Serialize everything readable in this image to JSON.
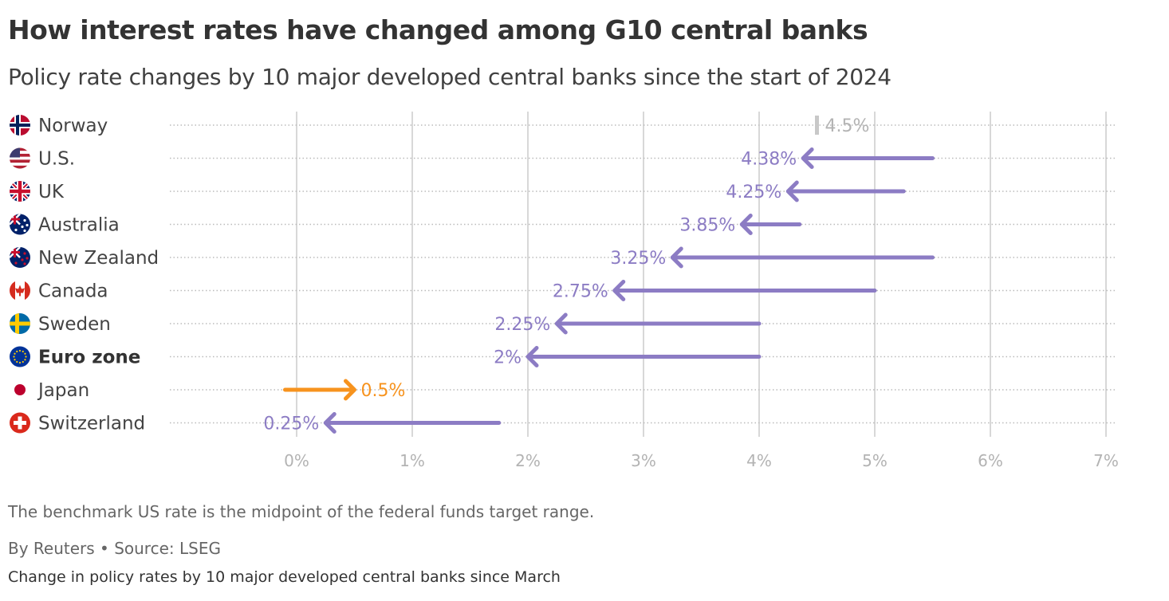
{
  "title": "How interest rates have changed among G10 central banks",
  "subtitle": "Policy rate changes by 10 major developed central banks since the start of 2024",
  "footnote": "The benchmark US rate is the midpoint of the federal funds target range.",
  "source": "By Reuters • Source: LSEG",
  "caption": "Change in policy rates by 10 major developed central banks since March",
  "colors": {
    "cut": "#8c7cc4",
    "hike": "#f7931e",
    "unchanged": "#c8c8c8",
    "grid": "#cccccc",
    "dotted": "#bbbbbb",
    "axis_text": "#b3b3b3"
  },
  "chart_data": {
    "type": "arrow",
    "title": "How interest rates have changed among G10 central banks",
    "xlabel": "",
    "ylabel": "",
    "xlim": [
      0,
      7
    ],
    "x_ticks": [
      0,
      1,
      2,
      3,
      4,
      5,
      6,
      7
    ],
    "x_tick_labels": [
      "0%",
      "1%",
      "2%",
      "3%",
      "4%",
      "5%",
      "6%",
      "7%"
    ],
    "series": [
      {
        "country": "Norway",
        "flag": "norway-flag-icon",
        "start": 4.5,
        "end": 4.5,
        "label": "4.5%",
        "kind": "unchanged",
        "bold": false
      },
      {
        "country": "U.S.",
        "flag": "us-flag-icon",
        "start": 5.5,
        "end": 4.38,
        "label": "4.38%",
        "kind": "cut",
        "bold": false
      },
      {
        "country": "UK",
        "flag": "uk-flag-icon",
        "start": 5.25,
        "end": 4.25,
        "label": "4.25%",
        "kind": "cut",
        "bold": false
      },
      {
        "country": "Australia",
        "flag": "australia-flag-icon",
        "start": 4.35,
        "end": 3.85,
        "label": "3.85%",
        "kind": "cut",
        "bold": false
      },
      {
        "country": "New Zealand",
        "flag": "new-zealand-flag-icon",
        "start": 5.5,
        "end": 3.25,
        "label": "3.25%",
        "kind": "cut",
        "bold": false
      },
      {
        "country": "Canada",
        "flag": "canada-flag-icon",
        "start": 5.0,
        "end": 2.75,
        "label": "2.75%",
        "kind": "cut",
        "bold": false
      },
      {
        "country": "Sweden",
        "flag": "sweden-flag-icon",
        "start": 4.0,
        "end": 2.25,
        "label": "2.25%",
        "kind": "cut",
        "bold": false
      },
      {
        "country": "Euro zone",
        "flag": "eu-flag-icon",
        "start": 4.0,
        "end": 2.0,
        "label": "2%",
        "kind": "cut",
        "bold": true
      },
      {
        "country": "Japan",
        "flag": "japan-flag-icon",
        "start": -0.1,
        "end": 0.5,
        "label": "0.5%",
        "kind": "hike",
        "bold": false
      },
      {
        "country": "Switzerland",
        "flag": "switzerland-flag-icon",
        "start": 1.75,
        "end": 0.25,
        "label": "0.25%",
        "kind": "cut",
        "bold": false
      }
    ]
  }
}
